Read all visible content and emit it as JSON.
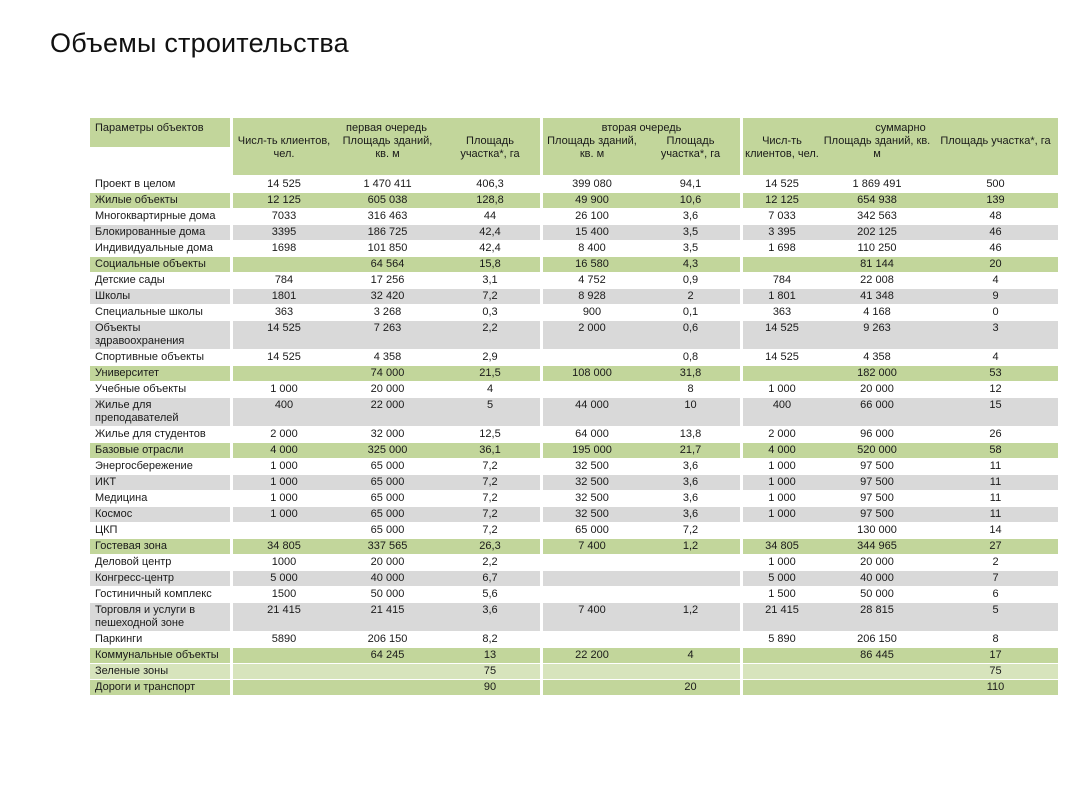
{
  "page": {
    "title": "Объемы строительства"
  },
  "colors": {
    "green": "#c2d69b",
    "lightgreen": "#d7e4bc",
    "gray": "#d9d9d9"
  },
  "table": {
    "label_header": "Параметры объектов",
    "groups": [
      {
        "title": "первая очередь",
        "columns": [
          "Числ-ть клиентов, чел.",
          "Площадь зданий, кв. м",
          "Площадь участка*, га"
        ]
      },
      {
        "title": "вторая очередь",
        "columns": [
          "Площадь зданий, кв. м",
          "Площадь участка*, га"
        ]
      },
      {
        "title": "суммарно",
        "columns": [
          "Числ-ть клиентов, чел.",
          "Площадь зданий, кв. м",
          "Площадь участка*, га"
        ]
      }
    ],
    "rows": [
      {
        "label": "Проект в целом",
        "style": "white",
        "cells": [
          "14 525",
          "1 470 411",
          "406,3",
          "399 080",
          "94,1",
          "14 525",
          "1 869 491",
          "500"
        ]
      },
      {
        "label": "Жилые объекты",
        "style": "green",
        "cells": [
          "12 125",
          "605 038",
          "128,8",
          "49 900",
          "10,6",
          "12 125",
          "654 938",
          "139"
        ]
      },
      {
        "label": "Многоквартирные дома",
        "style": "white",
        "cells": [
          "7033",
          "316 463",
          "44",
          "26 100",
          "3,6",
          "7 033",
          "342 563",
          "48"
        ]
      },
      {
        "label": "Блокированные дома",
        "style": "gray",
        "cells": [
          "3395",
          "186 725",
          "42,4",
          "15 400",
          "3,5",
          "3 395",
          "202 125",
          "46"
        ]
      },
      {
        "label": "Индивидуальные дома",
        "style": "white",
        "cells": [
          "1698",
          "101 850",
          "42,4",
          "8 400",
          "3,5",
          "1 698",
          "110 250",
          "46"
        ]
      },
      {
        "label": "Социальные объекты",
        "style": "green",
        "cells": [
          "",
          "64 564",
          "15,8",
          "16 580",
          "4,3",
          "",
          "81 144",
          "20"
        ]
      },
      {
        "label": "Детские сады",
        "style": "white",
        "cells": [
          "784",
          "17 256",
          "3,1",
          "4 752",
          "0,9",
          "784",
          "22 008",
          "4"
        ]
      },
      {
        "label": "Школы",
        "style": "gray",
        "cells": [
          "1801",
          "32 420",
          "7,2",
          "8 928",
          "2",
          "1 801",
          "41 348",
          "9"
        ]
      },
      {
        "label": "Специальные школы",
        "style": "white",
        "cells": [
          "363",
          "3 268",
          "0,3",
          "900",
          "0,1",
          "363",
          "4 168",
          "0"
        ]
      },
      {
        "label": "Объекты здравоохранения",
        "style": "gray",
        "cells": [
          "14 525",
          "7 263",
          "2,2",
          "2 000",
          "0,6",
          "14 525",
          "9 263",
          "3"
        ]
      },
      {
        "label": "Спортивные объекты",
        "style": "white",
        "cells": [
          "14 525",
          "4 358",
          "2,9",
          "",
          "0,8",
          "14 525",
          "4 358",
          "4"
        ]
      },
      {
        "label": "Университет",
        "style": "green",
        "cells": [
          "",
          "74 000",
          "21,5",
          "108 000",
          "31,8",
          "",
          "182 000",
          "53"
        ]
      },
      {
        "label": "Учебные объекты",
        "style": "white",
        "cells": [
          "1 000",
          "20 000",
          "4",
          "",
          "8",
          "1 000",
          "20 000",
          "12"
        ]
      },
      {
        "label": "Жилье для преподавателей",
        "style": "gray",
        "cells": [
          "400",
          "22 000",
          "5",
          "44 000",
          "10",
          "400",
          "66 000",
          "15"
        ]
      },
      {
        "label": "Жилье для студентов",
        "style": "white",
        "cells": [
          "2 000",
          "32 000",
          "12,5",
          "64 000",
          "13,8",
          "2 000",
          "96 000",
          "26"
        ]
      },
      {
        "label": "Базовые отрасли",
        "style": "green",
        "cells": [
          "4 000",
          "325 000",
          "36,1",
          "195 000",
          "21,7",
          "4 000",
          "520 000",
          "58"
        ]
      },
      {
        "label": "Энергосбережение",
        "style": "white",
        "cells": [
          "1 000",
          "65 000",
          "7,2",
          "32 500",
          "3,6",
          "1 000",
          "97 500",
          "11"
        ]
      },
      {
        "label": "ИКТ",
        "style": "gray",
        "cells": [
          "1 000",
          "65 000",
          "7,2",
          "32 500",
          "3,6",
          "1 000",
          "97 500",
          "11"
        ]
      },
      {
        "label": "Медицина",
        "style": "white",
        "cells": [
          "1 000",
          "65 000",
          "7,2",
          "32 500",
          "3,6",
          "1 000",
          "97 500",
          "11"
        ]
      },
      {
        "label": "Космос",
        "style": "gray",
        "cells": [
          "1 000",
          "65 000",
          "7,2",
          "32 500",
          "3,6",
          "1 000",
          "97 500",
          "11"
        ]
      },
      {
        "label": "ЦКП",
        "style": "white",
        "cells": [
          "",
          "65 000",
          "7,2",
          "65 000",
          "7,2",
          "",
          "130 000",
          "14"
        ]
      },
      {
        "label": "Гостевая зона",
        "style": "green",
        "cells": [
          "34 805",
          "337 565",
          "26,3",
          "7 400",
          "1,2",
          "34 805",
          "344 965",
          "27"
        ]
      },
      {
        "label": "Деловой центр",
        "style": "white",
        "cells": [
          "1000",
          "20 000",
          "2,2",
          "",
          "",
          "1 000",
          "20 000",
          "2"
        ]
      },
      {
        "label": "Конгресс-центр",
        "style": "gray",
        "cells": [
          "5 000",
          "40 000",
          "6,7",
          "",
          "",
          "5 000",
          "40 000",
          "7"
        ]
      },
      {
        "label": "Гостиничный комплекс",
        "style": "white",
        "cells": [
          "1500",
          "50 000",
          "5,6",
          "",
          "",
          "1 500",
          "50 000",
          "6"
        ]
      },
      {
        "label": "Торговля и услуги в пешеходной зоне",
        "style": "gray",
        "cells": [
          "21 415",
          "21 415",
          "3,6",
          "7 400",
          "1,2",
          "21 415",
          "28 815",
          "5"
        ]
      },
      {
        "label": "Паркинги",
        "style": "white",
        "cells": [
          "5890",
          "206 150",
          "8,2",
          "",
          "",
          "5 890",
          "206 150",
          "8"
        ]
      },
      {
        "label": "Коммунальные объекты",
        "style": "green",
        "cells": [
          "",
          "64 245",
          "13",
          "22 200",
          "4",
          "",
          "86 445",
          "17"
        ]
      },
      {
        "label": "Зеленые зоны",
        "style": "lightgreen",
        "cells": [
          "",
          "",
          "75",
          "",
          "",
          "",
          "",
          "75"
        ]
      },
      {
        "label": "Дороги и транспорт",
        "style": "green",
        "cells": [
          "",
          "",
          "90",
          "",
          "20",
          "",
          "",
          "110"
        ]
      }
    ]
  }
}
